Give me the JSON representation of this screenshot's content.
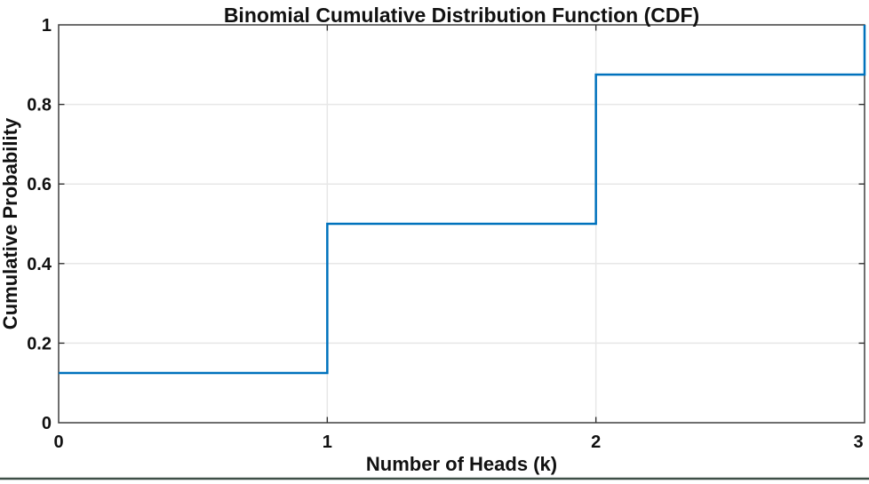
{
  "chart_data": {
    "type": "line",
    "subtype": "stairs",
    "title": "Binomial Cumulative Distribution Function (CDF)",
    "xlabel": "Number of Heads (k)",
    "ylabel": "Cumulative Probability",
    "x": [
      0,
      1,
      2,
      3
    ],
    "y": [
      0.125,
      0.5,
      0.875,
      1
    ],
    "xlim": [
      0,
      3
    ],
    "ylim": [
      0,
      1
    ],
    "xticks": [
      0,
      1,
      2,
      3
    ],
    "xtick_labels": [
      "0",
      "1",
      "2",
      "3"
    ],
    "yticks": [
      0,
      0.2,
      0.4,
      0.6,
      0.8,
      1
    ],
    "ytick_labels": [
      "0",
      "0.2",
      "0.4",
      "0.6",
      "0.8",
      "1"
    ],
    "grid": true,
    "legend": "none",
    "line_width": 2.5,
    "colors": {
      "line": "#0072BD",
      "grid": "#e7e7e7",
      "axes_box": "#3f3f3f",
      "tick": "#333333",
      "text": "#111111",
      "background": "#ffffff",
      "window_edge": "#3e4f47"
    }
  }
}
